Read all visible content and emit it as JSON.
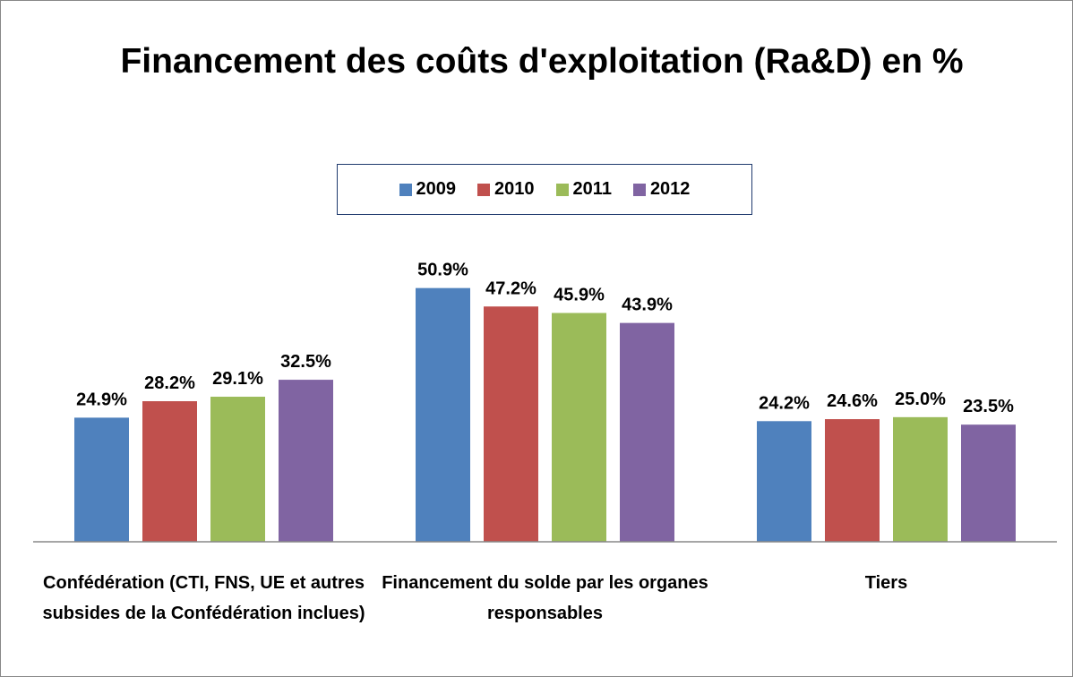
{
  "chart_data": {
    "type": "bar",
    "title": "Financement des coûts d'exploitation (Ra&D) en %",
    "categories": [
      "Confédération (CTI, FNS, UE et autres subsides de la Confédération inclues)",
      "Financement du solde par les organes responsables",
      "Tiers"
    ],
    "series": [
      {
        "name": "2009",
        "color": "#4f81bd",
        "values": [
          24.9,
          50.9,
          24.2
        ],
        "value_labels": [
          "24.9%",
          "50.9%",
          "24.2%"
        ]
      },
      {
        "name": "2010",
        "color": "#c0504d",
        "values": [
          28.2,
          47.2,
          24.6
        ],
        "value_labels": [
          "28.2%",
          "47.2%",
          "24.6%"
        ]
      },
      {
        "name": "2011",
        "color": "#9bbb59",
        "values": [
          29.1,
          45.9,
          25
        ],
        "value_labels": [
          "29.1%",
          "45.9%",
          "25.0%"
        ]
      },
      {
        "name": "2012",
        "color": "#8064a2",
        "values": [
          32.5,
          43.9,
          23.5
        ],
        "value_labels": [
          "32.5%",
          "43.9%",
          "23.5%"
        ]
      }
    ],
    "ylim": [
      0,
      60
    ],
    "legend": "top"
  }
}
